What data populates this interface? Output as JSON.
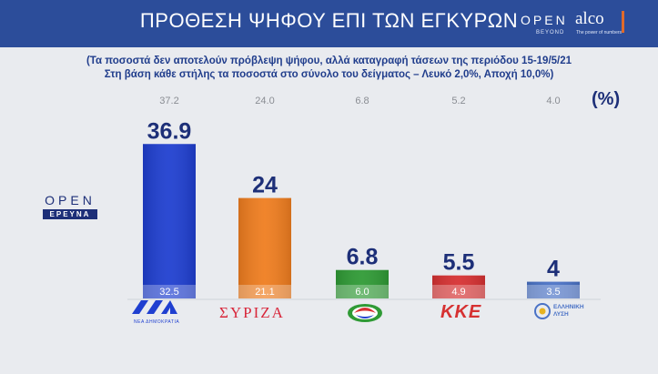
{
  "header": {
    "title": "ΠΡΟΘΕΣΗ ΨΗΦΟΥ ΕΠΙ ΤΩΝ ΕΓΚΥΡΩΝ",
    "brand_open": "OPEN",
    "brand_beyond": "BEYOND",
    "brand_alco": "alco",
    "brand_alco_sub": "The power of numbers",
    "colors": {
      "band": "#2c4d9a",
      "accent": "#e06a2a"
    }
  },
  "notes": {
    "line1": "(Τα ποσοστά δεν αποτελούν πρόβλεψη ψήφου, αλλά καταγραφή τάσεων της περιόδου 15-19/5/21",
    "line2": "Στη βάση κάθε στήλης τα ποσοστά στο σύνολο του δείγματος – Λευκό 2,0%, Αποχή 10,0%)"
  },
  "open_logo": {
    "word": "OPEN",
    "tag": "ΕΡΕΥΝΑ"
  },
  "parties": {
    "nd": {
      "icon": "nd-logo-icon",
      "sub": "ΝΕΑ ΔΗΜΟΚΡΑΤΙΑ"
    },
    "syriza": {
      "name": "ΣΥΡΙΖΑ",
      "icon": "syriza-logo-icon"
    },
    "kinal": {
      "icon": "kinal-logo-icon"
    },
    "kke": {
      "name": "ΚΚΕ",
      "icon": "kke-logo-icon"
    },
    "el": {
      "name": "ΕΛΛΗΝΙΚΗ ΛΥΣΗ",
      "icon": "elliniki-lysi-logo-icon"
    }
  },
  "chart_data": {
    "type": "bar",
    "unit": "(%)",
    "ylim": [
      0,
      40
    ],
    "grid": false,
    "legend": "none",
    "previous": [
      37.2,
      24.0,
      6.8,
      5.2,
      4.0
    ],
    "values": [
      36.9,
      24,
      6.8,
      5.5,
      4
    ],
    "base_values": [
      32.5,
      21.1,
      6.0,
      4.9,
      3.5
    ],
    "value_labels": [
      "36.9",
      "24",
      "6.8",
      "5.5",
      "4"
    ],
    "previous_labels": [
      "37.2",
      "24.0",
      "6.8",
      "5.2",
      "4.0"
    ],
    "base_labels": [
      "32.5",
      "21.1",
      "6.0",
      "4.9",
      "3.5"
    ],
    "colors": [
      "#1f3fd0",
      "#ef7d1f",
      "#2f9a35",
      "#d63132",
      "#4a72c6"
    ]
  }
}
